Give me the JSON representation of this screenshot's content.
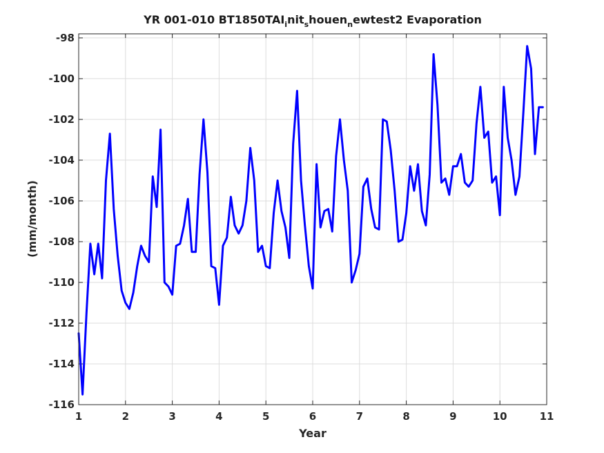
{
  "chart_data": {
    "type": "line",
    "title": {
      "pre": "YR 001-010 BT1850TAI",
      "sub1": "i",
      "mid1": "nit",
      "sub2": "s",
      "mid2": "houen",
      "sub3": "n",
      "post": "ewtest2 Evaporation"
    },
    "xlabel": "Year",
    "ylabel": "(mm/month)",
    "xlim": [
      1,
      11
    ],
    "ylim": [
      -116,
      -97.8
    ],
    "xticks": [
      1,
      2,
      3,
      4,
      5,
      6,
      7,
      8,
      9,
      10,
      11
    ],
    "yticks": [
      -116,
      -114,
      -112,
      -110,
      -108,
      -106,
      -104,
      -102,
      -100,
      -98
    ],
    "grid": true,
    "series": [
      {
        "color": "#0000ff",
        "x": [
          1.0,
          1.083,
          1.167,
          1.25,
          1.333,
          1.417,
          1.5,
          1.583,
          1.667,
          1.75,
          1.833,
          1.917,
          2.0,
          2.083,
          2.167,
          2.25,
          2.333,
          2.417,
          2.5,
          2.583,
          2.667,
          2.75,
          2.833,
          2.917,
          3.0,
          3.083,
          3.167,
          3.25,
          3.333,
          3.417,
          3.5,
          3.583,
          3.667,
          3.75,
          3.833,
          3.917,
          4.0,
          4.083,
          4.167,
          4.25,
          4.333,
          4.417,
          4.5,
          4.583,
          4.667,
          4.75,
          4.833,
          4.917,
          5.0,
          5.083,
          5.167,
          5.25,
          5.333,
          5.417,
          5.5,
          5.583,
          5.667,
          5.75,
          5.833,
          5.917,
          6.0,
          6.083,
          6.167,
          6.25,
          6.333,
          6.417,
          6.5,
          6.583,
          6.667,
          6.75,
          6.833,
          6.917,
          7.0,
          7.083,
          7.167,
          7.25,
          7.333,
          7.417,
          7.5,
          7.583,
          7.667,
          7.75,
          7.833,
          7.917,
          8.0,
          8.083,
          8.167,
          8.25,
          8.333,
          8.417,
          8.5,
          8.583,
          8.667,
          8.75,
          8.833,
          8.917,
          9.0,
          9.083,
          9.167,
          9.25,
          9.333,
          9.417,
          9.5,
          9.583,
          9.667,
          9.75,
          9.833,
          9.917,
          10.0,
          10.083,
          10.167,
          10.25,
          10.333,
          10.417,
          10.5,
          10.583,
          10.667,
          10.75,
          10.833,
          10.917
        ],
        "y": [
          -112.5,
          -115.5,
          -111.5,
          -108.1,
          -109.6,
          -108.1,
          -109.8,
          -105.0,
          -102.7,
          -106.4,
          -108.7,
          -110.4,
          -111.0,
          -111.3,
          -110.5,
          -109.2,
          -108.2,
          -108.7,
          -109.0,
          -104.8,
          -106.3,
          -102.5,
          -110.0,
          -110.2,
          -110.6,
          -108.2,
          -108.1,
          -107.2,
          -105.9,
          -108.5,
          -108.5,
          -104.7,
          -102.0,
          -104.6,
          -109.2,
          -109.3,
          -111.1,
          -108.2,
          -107.8,
          -105.8,
          -107.2,
          -107.6,
          -107.2,
          -106.0,
          -103.4,
          -105.0,
          -108.5,
          -108.2,
          -109.2,
          -109.3,
          -106.6,
          -105.0,
          -106.5,
          -107.3,
          -108.8,
          -103.2,
          -100.6,
          -105.0,
          -107.2,
          -109.2,
          -110.3,
          -104.2,
          -107.3,
          -106.5,
          -106.4,
          -107.5,
          -103.8,
          -102.0,
          -104.0,
          -105.5,
          -110.0,
          -109.4,
          -108.6,
          -105.3,
          -104.9,
          -106.4,
          -107.3,
          -107.4,
          -102.0,
          -102.1,
          -103.5,
          -105.5,
          -108.0,
          -107.9,
          -106.6,
          -104.3,
          -105.5,
          -104.2,
          -106.5,
          -107.2,
          -104.7,
          -98.8,
          -101.3,
          -105.1,
          -104.9,
          -105.7,
          -104.3,
          -104.3,
          -103.7,
          -105.1,
          -105.3,
          -105.0,
          -102.2,
          -100.4,
          -102.9,
          -102.6,
          -105.1,
          -104.8,
          -106.7,
          -100.4,
          -102.9,
          -104.0,
          -105.7,
          -104.8,
          -101.7,
          -98.4,
          -99.5,
          -103.7,
          -101.4,
          -101.4
        ]
      }
    ]
  }
}
